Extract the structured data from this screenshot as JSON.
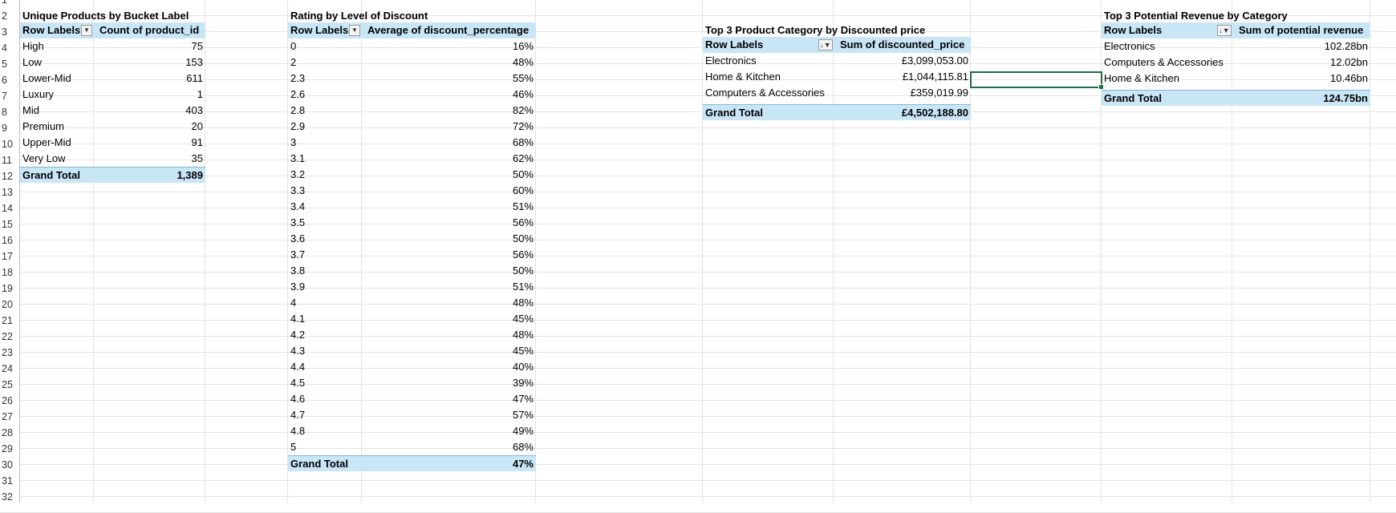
{
  "row_numbers": [
    "1",
    "2",
    "3",
    "4",
    "5",
    "6",
    "7",
    "8",
    "9",
    "10",
    "11",
    "12",
    "13",
    "14",
    "15",
    "16",
    "17",
    "18",
    "19",
    "20",
    "21",
    "22",
    "23",
    "24",
    "25",
    "26",
    "27",
    "28",
    "29",
    "30",
    "31",
    "32"
  ],
  "pivot1": {
    "title": "Unique Products by Bucket Label",
    "col1": "Row Labels",
    "col2": "Count of product_id",
    "rows": [
      {
        "label": "High",
        "value": "75"
      },
      {
        "label": "Low",
        "value": "153"
      },
      {
        "label": "Lower-Mid",
        "value": "611"
      },
      {
        "label": "Luxury",
        "value": "1"
      },
      {
        "label": "Mid",
        "value": "403"
      },
      {
        "label": "Premium",
        "value": "20"
      },
      {
        "label": "Upper-Mid",
        "value": "91"
      },
      {
        "label": "Very Low",
        "value": "35"
      }
    ],
    "total_label": "Grand Total",
    "total_value": "1,389"
  },
  "pivot2": {
    "title": "Rating by Level of Discount",
    "col1": "Row Labels",
    "col2": "Average of discount_percentage",
    "rows": [
      {
        "label": "0",
        "value": "16%"
      },
      {
        "label": "2",
        "value": "48%"
      },
      {
        "label": "2.3",
        "value": "55%"
      },
      {
        "label": "2.6",
        "value": "46%"
      },
      {
        "label": "2.8",
        "value": "82%"
      },
      {
        "label": "2.9",
        "value": "72%"
      },
      {
        "label": "3",
        "value": "68%"
      },
      {
        "label": "3.1",
        "value": "62%"
      },
      {
        "label": "3.2",
        "value": "50%"
      },
      {
        "label": "3.3",
        "value": "60%"
      },
      {
        "label": "3.4",
        "value": "51%"
      },
      {
        "label": "3.5",
        "value": "56%"
      },
      {
        "label": "3.6",
        "value": "50%"
      },
      {
        "label": "3.7",
        "value": "56%"
      },
      {
        "label": "3.8",
        "value": "50%"
      },
      {
        "label": "3.9",
        "value": "51%"
      },
      {
        "label": "4",
        "value": "48%"
      },
      {
        "label": "4.1",
        "value": "45%"
      },
      {
        "label": "4.2",
        "value": "48%"
      },
      {
        "label": "4.3",
        "value": "45%"
      },
      {
        "label": "4.4",
        "value": "40%"
      },
      {
        "label": "4.5",
        "value": "39%"
      },
      {
        "label": "4.6",
        "value": "47%"
      },
      {
        "label": "4.7",
        "value": "57%"
      },
      {
        "label": "4.8",
        "value": "49%"
      },
      {
        "label": "5",
        "value": "68%"
      }
    ],
    "total_label": "Grand Total",
    "total_value": "47%"
  },
  "pivot3": {
    "title": "Top 3 Product Category by Discounted price",
    "col1": "Row Labels",
    "col2": "Sum of discounted_price",
    "rows": [
      {
        "label": "Electronics",
        "value": "£3,099,053.00"
      },
      {
        "label": "Home & Kitchen",
        "value": "£1,044,115.81"
      },
      {
        "label": "Computers & Accessories",
        "value": "£359,019.99"
      }
    ],
    "total_label": "Grand Total",
    "total_value": "£4,502,188.80"
  },
  "pivot4": {
    "title": "Top 3 Potential Revenue by Category",
    "col1": "Row Labels",
    "col2": "Sum of potential revenue",
    "rows": [
      {
        "label": "Electronics",
        "value": "102.28bn"
      },
      {
        "label": "Computers & Accessories",
        "value": "12.02bn"
      },
      {
        "label": "Home & Kitchen",
        "value": "10.46bn"
      }
    ],
    "total_label": "Grand Total",
    "total_value": "124.75bn"
  }
}
